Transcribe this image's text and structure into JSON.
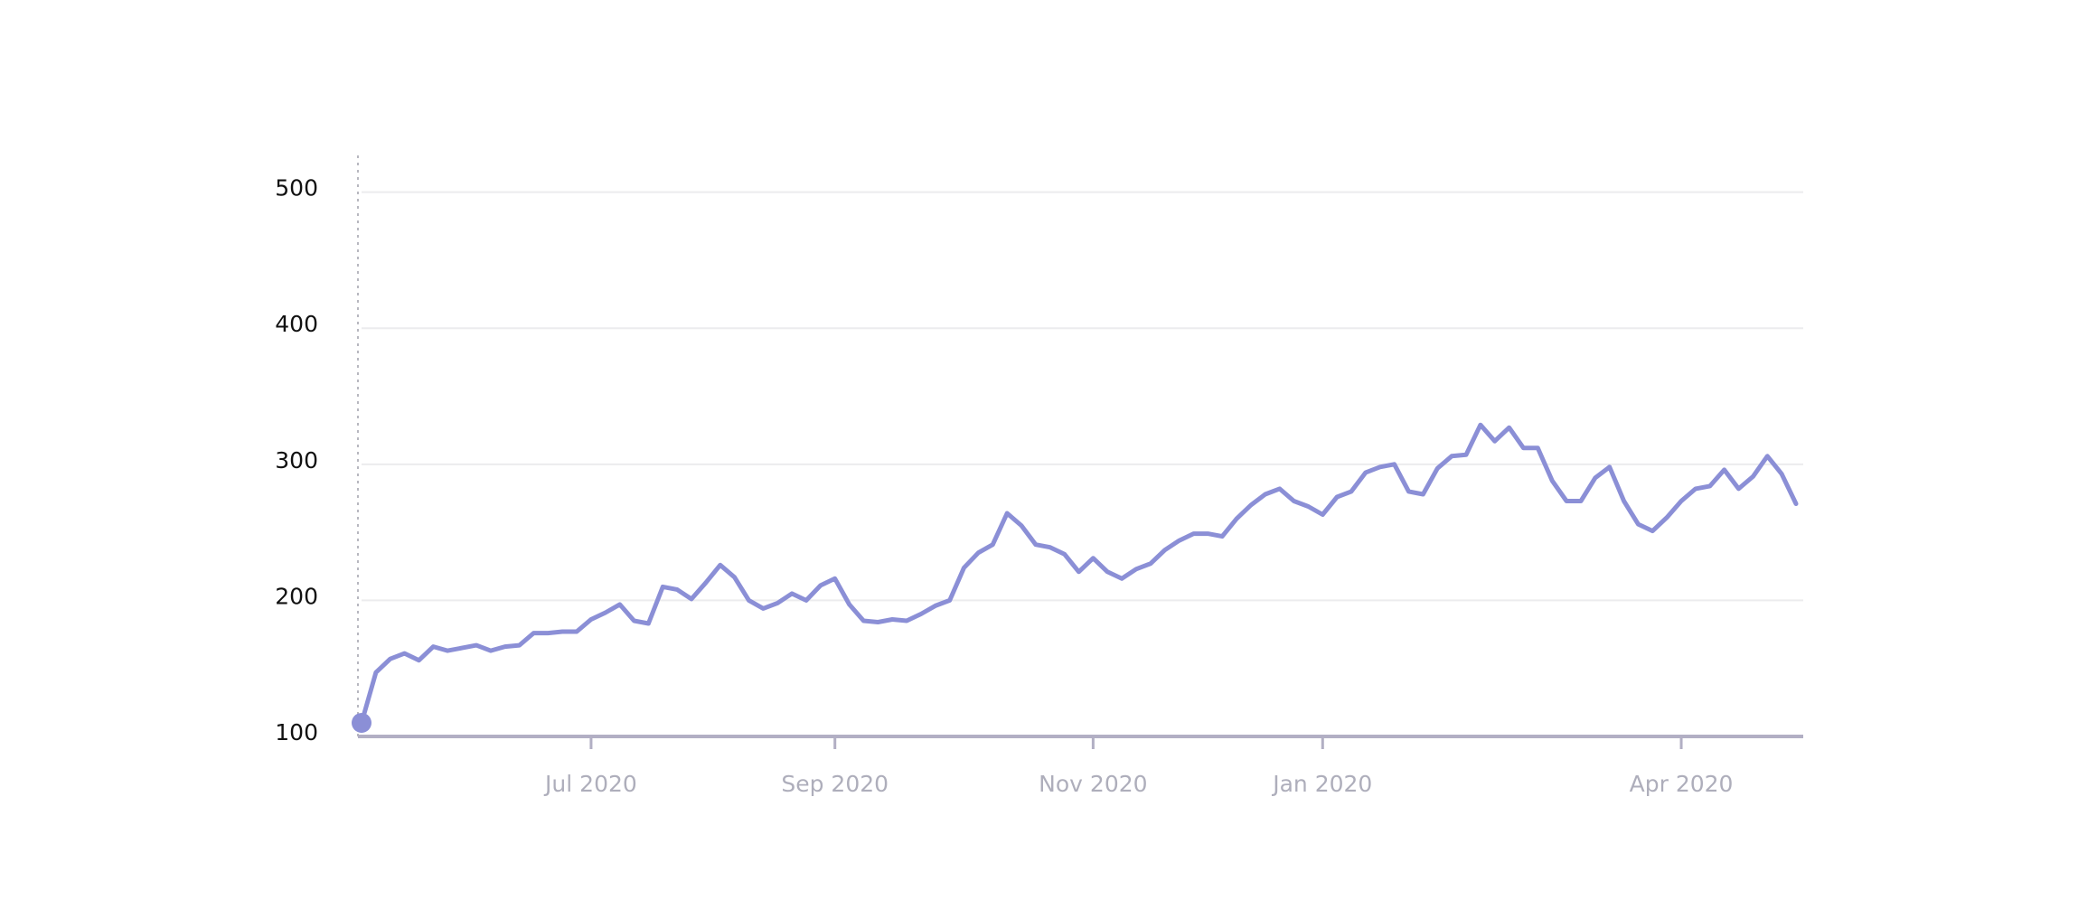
{
  "chart_data": {
    "type": "line",
    "categories": [
      null,
      null,
      null,
      null,
      null,
      null,
      null,
      null,
      null,
      null,
      null,
      null,
      null,
      null,
      null,
      null,
      "Jul 2020",
      null,
      null,
      null,
      null,
      null,
      null,
      null,
      null,
      null,
      null,
      null,
      null,
      null,
      null,
      null,
      null,
      "Sep 2020",
      null,
      null,
      null,
      null,
      null,
      null,
      null,
      null,
      null,
      null,
      null,
      null,
      null,
      null,
      null,
      null,
      null,
      "Nov 2020",
      null,
      null,
      null,
      null,
      null,
      null,
      null,
      null,
      null,
      null,
      null,
      null,
      null,
      null,
      null,
      "Jan 2020",
      null,
      null,
      null,
      null,
      null,
      null,
      null,
      null,
      null,
      null,
      null,
      null,
      null,
      null,
      null,
      null,
      null,
      null,
      null,
      null,
      null,
      null,
      null,
      null,
      "Apr 2020",
      null,
      null,
      null,
      null,
      null,
      null,
      null,
      null
    ],
    "values": [
      110,
      147,
      157,
      161,
      156,
      166,
      163,
      165,
      167,
      163,
      166,
      167,
      176,
      176,
      177,
      177,
      186,
      191,
      197,
      185,
      183,
      210,
      208,
      201,
      213,
      226,
      217,
      200,
      194,
      198,
      205,
      200,
      211,
      216,
      197,
      185,
      184,
      186,
      185,
      190,
      196,
      200,
      224,
      235,
      241,
      264,
      255,
      241,
      239,
      234,
      221,
      231,
      221,
      216,
      223,
      227,
      237,
      244,
      249,
      249,
      247,
      260,
      270,
      278,
      282,
      273,
      269,
      263,
      276,
      280,
      294,
      298,
      300,
      280,
      278,
      297,
      306,
      307,
      329,
      317,
      327,
      312,
      312,
      288,
      273,
      273,
      290,
      298,
      273,
      256,
      251,
      261,
      273,
      282,
      284,
      296,
      282,
      291,
      306,
      293,
      271
    ],
    "color": "#8b8fd6",
    "ylim": [
      100,
      527
    ],
    "yticks": [
      100,
      200,
      300,
      400,
      500
    ],
    "grid": true
  }
}
